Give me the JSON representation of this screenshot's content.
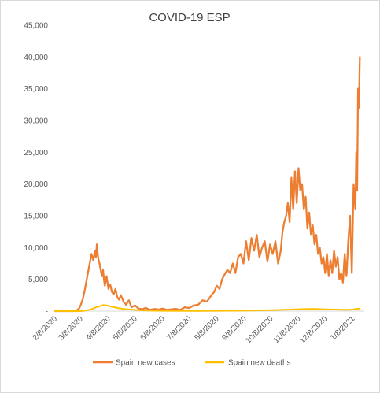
{
  "chart_data": {
    "type": "line",
    "title": "COVID-19 ESP",
    "xlabel": "",
    "ylabel": "",
    "ylim": [
      0,
      45000
    ],
    "y_ticks": [
      0,
      5000,
      10000,
      15000,
      20000,
      25000,
      30000,
      35000,
      40000,
      45000
    ],
    "y_tick_labels": [
      "-",
      "5,000",
      "10,000",
      "15,000",
      "20,000",
      "25,000",
      "30,000",
      "35,000",
      "40,000",
      "45,000"
    ],
    "x_ticks": [
      "2020-02-08",
      "2020-03-08",
      "2020-04-08",
      "2020-05-08",
      "2020-06-08",
      "2020-07-08",
      "2020-08-08",
      "2020-09-08",
      "2020-10-08",
      "2020-11-08",
      "2020-12-08",
      "2021-01-08"
    ],
    "x_tick_labels": [
      "2/8/2020",
      "3/8/2020",
      "4/8/2020",
      "5/8/2020",
      "6/8/2020",
      "7/8/2020",
      "8/8/2020",
      "9/8/2020",
      "10/8/2020",
      "11/8/2020",
      "12/8/2020",
      "1/8/2021"
    ],
    "grid": false,
    "legend": "bottom",
    "series": [
      {
        "name": "Spain new cases",
        "color": "#ED7D31",
        "x": [
          "2020-02-08",
          "2020-02-20",
          "2020-02-28",
          "2020-03-03",
          "2020-03-06",
          "2020-03-08",
          "2020-03-10",
          "2020-03-12",
          "2020-03-14",
          "2020-03-16",
          "2020-03-18",
          "2020-03-20",
          "2020-03-22",
          "2020-03-24",
          "2020-03-25",
          "2020-03-26",
          "2020-03-27",
          "2020-03-28",
          "2020-03-29",
          "2020-03-30",
          "2020-03-31",
          "2020-04-01",
          "2020-04-02",
          "2020-04-03",
          "2020-04-04",
          "2020-04-06",
          "2020-04-08",
          "2020-04-10",
          "2020-04-12",
          "2020-04-14",
          "2020-04-16",
          "2020-04-18",
          "2020-04-20",
          "2020-04-22",
          "2020-04-25",
          "2020-04-28",
          "2020-05-01",
          "2020-05-04",
          "2020-05-08",
          "2020-05-12",
          "2020-05-16",
          "2020-05-20",
          "2020-05-25",
          "2020-05-30",
          "2020-06-04",
          "2020-06-08",
          "2020-06-13",
          "2020-06-18",
          "2020-06-23",
          "2020-06-28",
          "2020-07-03",
          "2020-07-08",
          "2020-07-13",
          "2020-07-18",
          "2020-07-23",
          "2020-07-28",
          "2020-08-02",
          "2020-08-05",
          "2020-08-08",
          "2020-08-11",
          "2020-08-14",
          "2020-08-17",
          "2020-08-20",
          "2020-08-23",
          "2020-08-26",
          "2020-08-29",
          "2020-09-01",
          "2020-09-04",
          "2020-09-07",
          "2020-09-10",
          "2020-09-13",
          "2020-09-16",
          "2020-09-19",
          "2020-09-22",
          "2020-09-25",
          "2020-09-28",
          "2020-10-01",
          "2020-10-04",
          "2020-10-07",
          "2020-10-10",
          "2020-10-13",
          "2020-10-16",
          "2020-10-19",
          "2020-10-21",
          "2020-10-23",
          "2020-10-25",
          "2020-10-27",
          "2020-10-29",
          "2020-10-31",
          "2020-11-02",
          "2020-11-04",
          "2020-11-06",
          "2020-11-08",
          "2020-11-10",
          "2020-11-12",
          "2020-11-14",
          "2020-11-16",
          "2020-11-18",
          "2020-11-20",
          "2020-11-22",
          "2020-11-24",
          "2020-11-26",
          "2020-11-28",
          "2020-11-30",
          "2020-12-02",
          "2020-12-04",
          "2020-12-06",
          "2020-12-08",
          "2020-12-10",
          "2020-12-12",
          "2020-12-14",
          "2020-12-16",
          "2020-12-18",
          "2020-12-20",
          "2020-12-22",
          "2020-12-24",
          "2020-12-26",
          "2020-12-28",
          "2020-12-30",
          "2021-01-01",
          "2021-01-03",
          "2021-01-05",
          "2021-01-07",
          "2021-01-09",
          "2021-01-11",
          "2021-01-12",
          "2021-01-13",
          "2021-01-14",
          "2021-01-15",
          "2021-01-16"
        ],
        "values": [
          0,
          0,
          0,
          100,
          400,
          1000,
          1800,
          3000,
          4500,
          6000,
          7500,
          9000,
          8000,
          9500,
          8500,
          10500,
          9000,
          8000,
          7500,
          6800,
          6000,
          5500,
          6500,
          5000,
          4000,
          5500,
          3500,
          4200,
          3000,
          2600,
          3500,
          2200,
          1800,
          2500,
          1500,
          1000,
          1700,
          600,
          900,
          400,
          300,
          500,
          200,
          350,
          250,
          400,
          200,
          300,
          350,
          200,
          600,
          500,
          900,
          1000,
          1700,
          1500,
          2500,
          3000,
          4000,
          3500,
          5000,
          5800,
          6500,
          6000,
          7500,
          6000,
          8500,
          9000,
          7500,
          11000,
          8000,
          11500,
          9500,
          12000,
          8500,
          10000,
          11000,
          7800,
          10500,
          9000,
          11000,
          7500,
          9500,
          12500,
          14000,
          15000,
          17000,
          14000,
          21000,
          16000,
          22000,
          17000,
          22500,
          19000,
          20000,
          16000,
          18000,
          13000,
          15500,
          12000,
          13500,
          10500,
          12000,
          9000,
          10000,
          7500,
          8500,
          6000,
          9000,
          5500,
          8000,
          6000,
          9500,
          7000,
          8500,
          5000,
          6000,
          4500,
          9000,
          5500,
          11000,
          15000,
          6000,
          20000,
          16000,
          25000,
          19000,
          35000,
          32000,
          40000
        ]
      },
      {
        "name": "Spain new deaths",
        "color": "#FFC000",
        "x": [
          "2020-02-08",
          "2020-03-08",
          "2020-03-14",
          "2020-03-20",
          "2020-03-25",
          "2020-03-30",
          "2020-04-02",
          "2020-04-06",
          "2020-04-10",
          "2020-04-15",
          "2020-04-20",
          "2020-04-28",
          "2020-05-08",
          "2020-05-20",
          "2020-06-08",
          "2020-07-08",
          "2020-08-08",
          "2020-09-08",
          "2020-10-08",
          "2020-10-20",
          "2020-10-30",
          "2020-11-08",
          "2020-11-15",
          "2020-11-25",
          "2020-12-08",
          "2020-12-20",
          "2021-01-01",
          "2021-01-08",
          "2021-01-12",
          "2021-01-16"
        ],
        "values": [
          0,
          5,
          100,
          300,
          600,
          800,
          950,
          900,
          750,
          600,
          450,
          300,
          200,
          100,
          50,
          30,
          40,
          80,
          150,
          200,
          250,
          300,
          320,
          350,
          280,
          250,
          200,
          250,
          350,
          400
        ]
      }
    ]
  }
}
